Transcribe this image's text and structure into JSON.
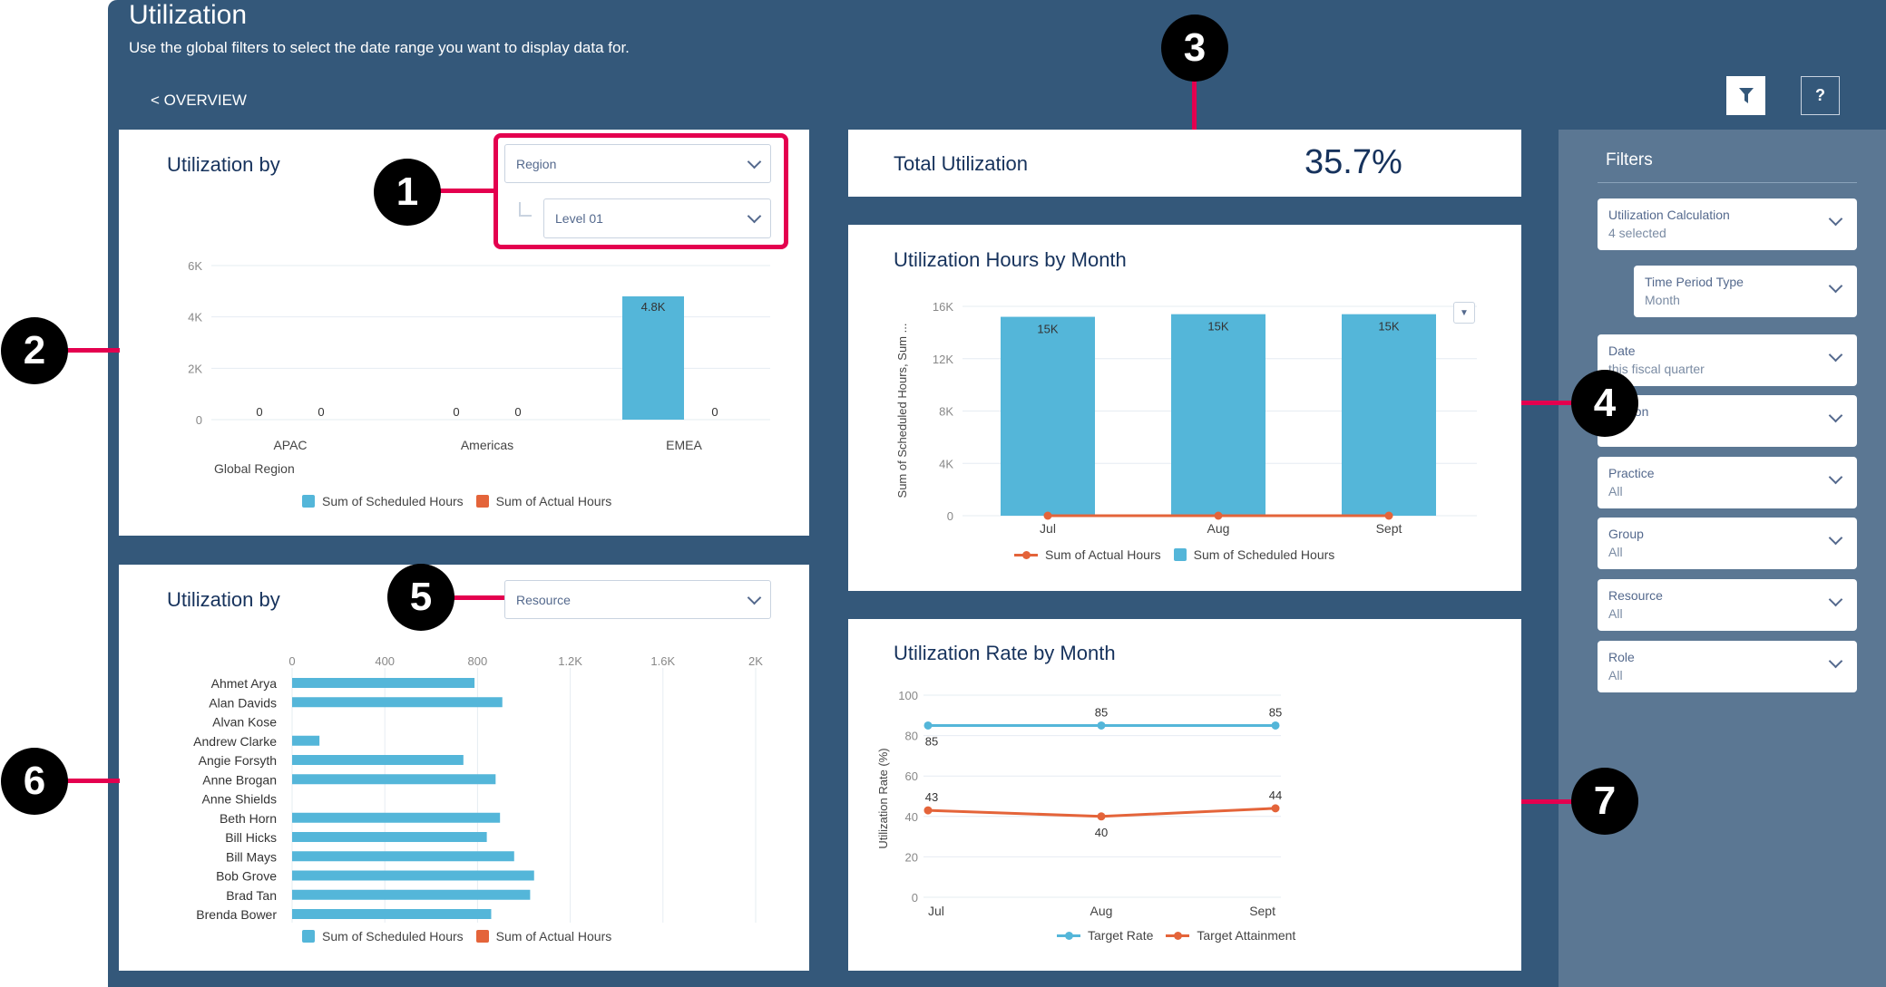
{
  "header": {
    "title": "Utilization",
    "subtitle": "Use the global filters to select the date range you want to display data for.",
    "back_link": "< OVERVIEW",
    "filter_button_icon": "funnel-icon",
    "help_button": "?"
  },
  "colors": {
    "background": "#34587a",
    "filter_panel": "#5b7793",
    "scheduled": "#54b6d9",
    "actual": "#e4643a",
    "annotation": "#e4004f"
  },
  "region_card": {
    "title": "Utilization by",
    "group_by": "Region",
    "level": "Level 01",
    "x_axis_label": "Global Region"
  },
  "resource_card": {
    "title": "Utilization by",
    "group_by": "Resource"
  },
  "total_card": {
    "label": "Total Utilization",
    "value": "35.7%"
  },
  "filters": {
    "title": "Filters",
    "items": [
      {
        "label": "Utilization Calculation",
        "value": "4 selected"
      },
      {
        "label": "Time Period Type",
        "value": "Month"
      },
      {
        "label": "Date",
        "value": "this fiscal quarter"
      },
      {
        "label": "Region",
        "value": ""
      },
      {
        "label": "Practice",
        "value": "All"
      },
      {
        "label": "Group",
        "value": "All"
      },
      {
        "label": "Resource",
        "value": "All"
      },
      {
        "label": "Role",
        "value": "All"
      }
    ]
  },
  "annotations": [
    "1",
    "2",
    "3",
    "4",
    "5",
    "6",
    "7"
  ],
  "chart_data": [
    {
      "type": "bar",
      "categories": [
        "APAC",
        "Americas",
        "EMEA"
      ],
      "xlabel": "Global Region",
      "ylabel": "",
      "ylim": [
        0,
        6000
      ],
      "yticks": [
        "0",
        "2K",
        "4K",
        "6K"
      ],
      "grid": true,
      "legend": "bottom",
      "series": [
        {
          "name": "Sum of Scheduled Hours",
          "values": [
            0,
            0,
            4800
          ],
          "labels": [
            "0",
            "0",
            "4.8K"
          ]
        },
        {
          "name": "Sum of Actual Hours",
          "values": [
            0,
            0,
            0
          ],
          "labels": [
            "0",
            "0",
            "0"
          ]
        }
      ]
    },
    {
      "type": "bar",
      "orientation": "horizontal",
      "categories": [
        "Ahmet Arya",
        "Alan Davids",
        "Alvan Kose",
        "Andrew Clarke",
        "Angie Forsyth",
        "Anne Brogan",
        "Anne Shields",
        "Beth Horn",
        "Bill Hicks",
        "Bill Mays",
        "Bob Grove",
        "Brad Tan",
        "Brenda Bower"
      ],
      "xlim": [
        0,
        2000
      ],
      "xticks": [
        "0",
        "400",
        "800",
        "1.2K",
        "1.6K",
        "2K"
      ],
      "grid": true,
      "legend": "bottom",
      "series": [
        {
          "name": "Sum of Scheduled Hours",
          "values": [
            787,
            907,
            0,
            118,
            739,
            878,
            0,
            897,
            840,
            958,
            1044,
            1027,
            859
          ]
        },
        {
          "name": "Sum of Actual Hours",
          "values": [
            0,
            0,
            0,
            0,
            0,
            0,
            0,
            0,
            0,
            0,
            0,
            0,
            0
          ]
        }
      ]
    },
    {
      "type": "bar",
      "title": "Utilization Hours by Month",
      "categories": [
        "Jul",
        "Aug",
        "Sept"
      ],
      "ylabel": "Sum of Scheduled Hours, Sum ...",
      "ylim": [
        0,
        16000
      ],
      "yticks": [
        "0",
        "4K",
        "8K",
        "12K",
        "16K"
      ],
      "grid": true,
      "legend": "bottom",
      "series": [
        {
          "name": "Sum of Actual Hours",
          "type": "line",
          "values": [
            0,
            0,
            0
          ]
        },
        {
          "name": "Sum of Scheduled Hours",
          "type": "bar",
          "values": [
            15200,
            15400,
            15400
          ],
          "labels": [
            "15K",
            "15K",
            "15K"
          ]
        }
      ]
    },
    {
      "type": "line",
      "title": "Utilization Rate by Month",
      "categories": [
        "Jul",
        "Aug",
        "Sept"
      ],
      "ylabel": "Utilization Rate (%)",
      "ylim": [
        0,
        100
      ],
      "yticks": [
        "0",
        "20",
        "40",
        "60",
        "80",
        "100"
      ],
      "grid": true,
      "legend": "bottom",
      "series": [
        {
          "name": "Target Rate",
          "values": [
            85,
            85,
            85
          ],
          "labels": [
            "85",
            "85",
            "85"
          ]
        },
        {
          "name": "Target Attainment",
          "values": [
            43,
            40,
            44
          ],
          "labels": [
            "43",
            "40",
            "44"
          ]
        }
      ]
    }
  ]
}
